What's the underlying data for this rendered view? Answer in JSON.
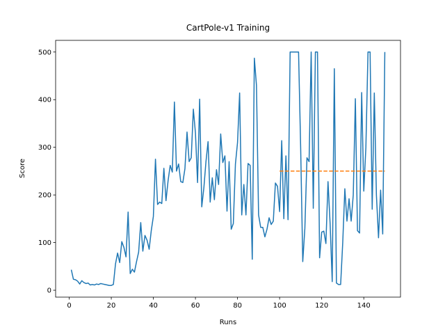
{
  "chart_data": {
    "type": "line",
    "title": "CartPole-v1 Training",
    "x_label": "Runs",
    "y_label": "Score",
    "xlim": [
      -6.45,
      157.45
    ],
    "ylim": [
      -14.5,
      524.5
    ],
    "xticks": [
      0,
      20,
      40,
      60,
      80,
      100,
      120,
      140
    ],
    "yticks": [
      0,
      100,
      200,
      300,
      400,
      500
    ],
    "grid": false,
    "series": [
      {
        "color": "#1f77b4",
        "dashed": false,
        "x": [
          1,
          2,
          3,
          4,
          5,
          6,
          7,
          8,
          9,
          10,
          11,
          12,
          13,
          14,
          15,
          16,
          17,
          18,
          19,
          20,
          21,
          22,
          23,
          24,
          25,
          26,
          27,
          28,
          29,
          30,
          31,
          32,
          33,
          34,
          35,
          36,
          37,
          38,
          39,
          40,
          41,
          42,
          43,
          44,
          45,
          46,
          47,
          48,
          49,
          50,
          51,
          52,
          53,
          54,
          55,
          56,
          57,
          58,
          59,
          60,
          61,
          62,
          63,
          64,
          65,
          66,
          67,
          68,
          69,
          70,
          71,
          72,
          73,
          74,
          75,
          76,
          77,
          78,
          79,
          80,
          81,
          82,
          83,
          84,
          85,
          86,
          87,
          88,
          89,
          90,
          91,
          92,
          93,
          94,
          95,
          96,
          97,
          98,
          99,
          100,
          101,
          102,
          103,
          104,
          105,
          106,
          107,
          108,
          109,
          110,
          111,
          112,
          113,
          114,
          115,
          116,
          117,
          118,
          119,
          120,
          121,
          122,
          123,
          124,
          125,
          126,
          127,
          128,
          129,
          130,
          131,
          132,
          133,
          134,
          135,
          136,
          137,
          138,
          139,
          140,
          141,
          142,
          143,
          144,
          145,
          146,
          147,
          148,
          149,
          150
        ],
        "values": [
          43,
          23,
          22,
          19,
          13,
          20,
          16,
          14,
          15,
          11,
          12,
          11,
          13,
          12,
          14,
          13,
          12,
          11,
          10,
          10,
          12,
          55,
          78,
          58,
          102,
          90,
          70,
          164,
          35,
          44,
          38,
          60,
          80,
          142,
          82,
          115,
          105,
          86,
          125,
          155,
          275,
          180,
          185,
          182,
          256,
          188,
          230,
          262,
          248,
          395,
          250,
          265,
          228,
          226,
          255,
          332,
          270,
          278,
          380,
          330,
          226,
          401,
          175,
          215,
          270,
          312,
          185,
          236,
          190,
          253,
          222,
          328,
          268,
          282,
          166,
          270,
          128,
          140,
          265,
          310,
          414,
          158,
          222,
          158,
          266,
          262,
          65,
          487,
          430,
          158,
          132,
          132,
          112,
          128,
          152,
          138,
          145,
          225,
          218,
          165,
          314,
          150,
          282,
          148,
          500,
          500,
          500,
          500,
          500,
          300,
          60,
          130,
          278,
          270,
          500,
          172,
          500,
          500,
          68,
          122,
          124,
          98,
          228,
          140,
          18,
          465,
          15,
          12,
          12,
          100,
          213,
          145,
          192,
          145,
          200,
          402,
          125,
          120,
          415,
          208,
          300,
          500,
          500,
          170,
          414,
          200,
          110,
          210,
          118,
          500
        ]
      },
      {
        "color": "#ff7f0e",
        "dashed": true,
        "x": [
          100,
          150
        ],
        "values": [
          250,
          250
        ]
      }
    ]
  }
}
